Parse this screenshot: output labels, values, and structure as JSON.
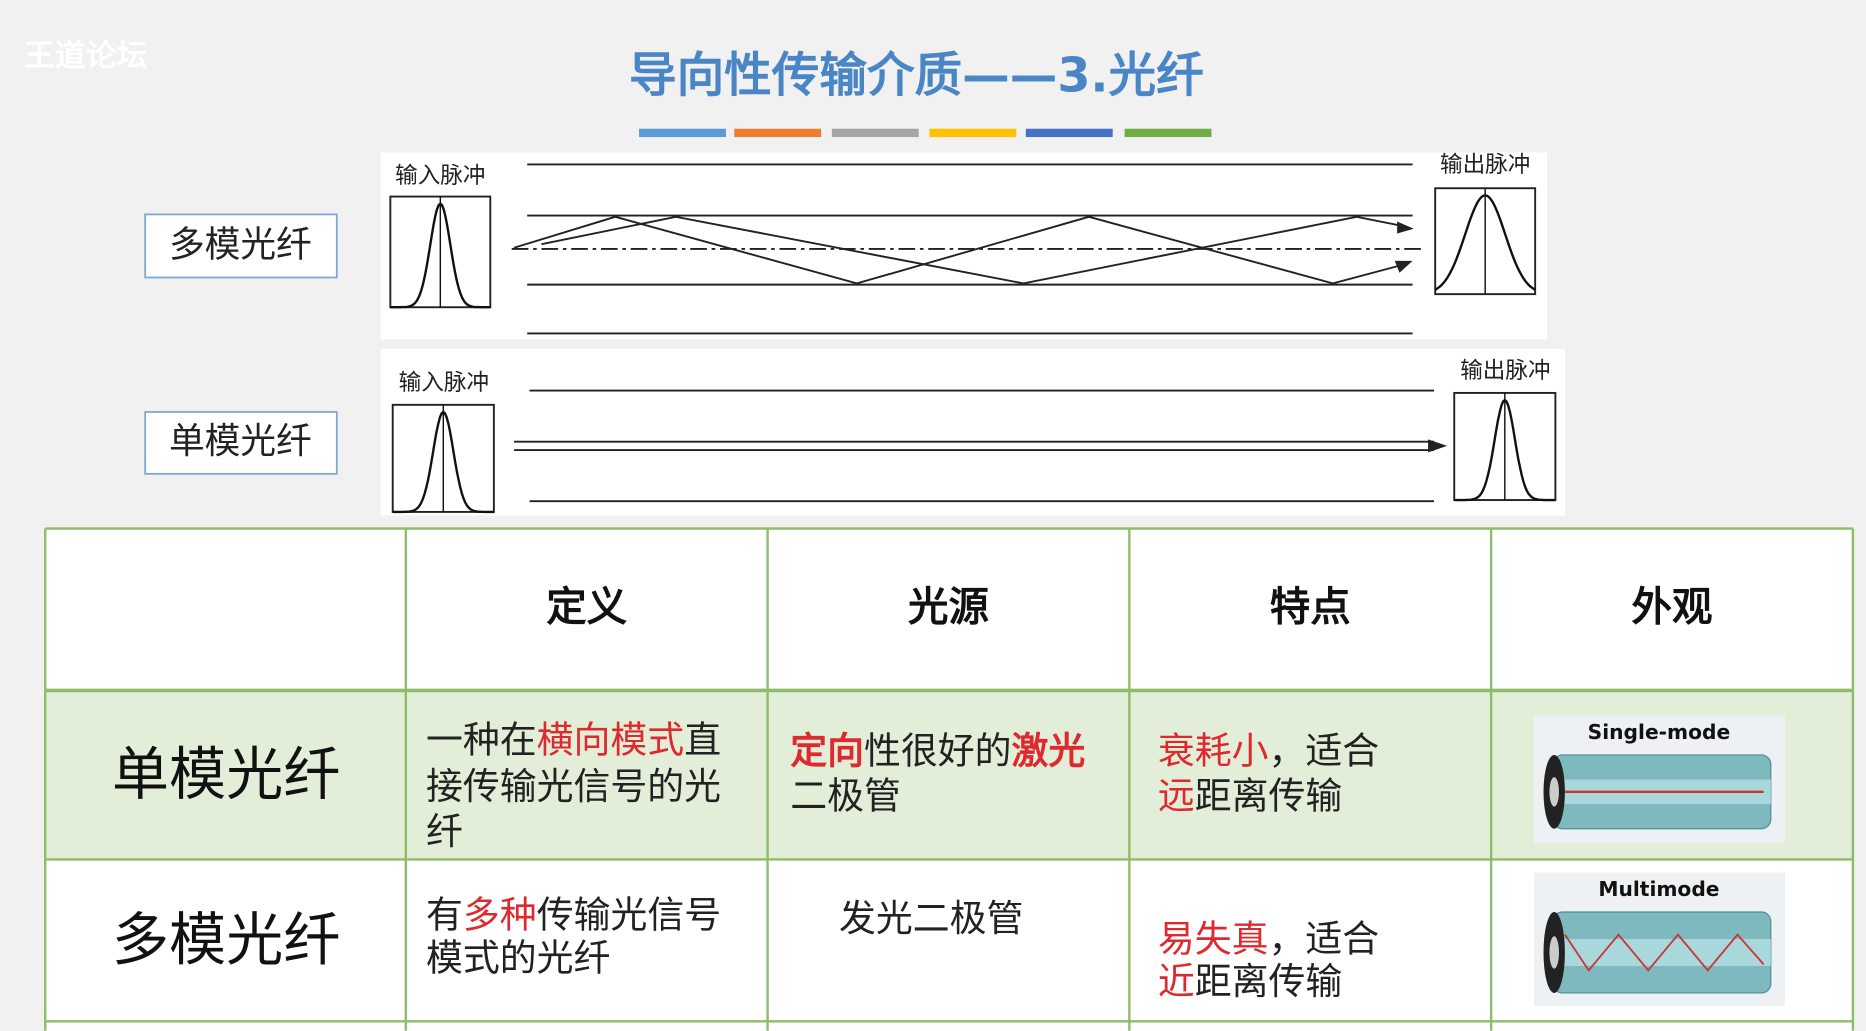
{
  "header": {
    "watermark": "王道论坛",
    "title": "导向性传输介质——3.光纤",
    "accent_colors": [
      "#5b9bd5",
      "#ed7d31",
      "#a5a5a5",
      "#ffc000",
      "#4472c4",
      "#70ad47"
    ]
  },
  "diagrams": [
    {
      "label": "多模光纤",
      "input": "输入脉冲",
      "output": "输出脉冲"
    },
    {
      "label": "单模光纤",
      "input": "输入脉冲",
      "output": "输出脉冲"
    }
  ],
  "table": {
    "highlight_color": "#de2a2f",
    "header": [
      "定义",
      "光源",
      "特点",
      "外观"
    ],
    "rows": [
      {
        "label": "单模光纤",
        "cells": [
          [
            [
              {
                "text": "一种在"
              },
              {
                "text": "横向模式",
                "highlight": true
              },
              {
                "text": "直"
              }
            ],
            [
              {
                "text": "接传输光信号的光"
              }
            ],
            [
              {
                "text": "纤"
              }
            ]
          ],
          [
            [
              {
                "text": "定向",
                "highlight": true,
                "bold": true
              },
              {
                "text": "性很好的"
              },
              {
                "text": "激光",
                "highlight": true,
                "bold": true
              }
            ],
            [
              {
                "text": "二极管"
              }
            ]
          ],
          [
            [
              {
                "text": "衰耗小",
                "highlight": true
              },
              {
                "text": "，适合"
              }
            ],
            [
              {
                "text": "远",
                "highlight": true
              },
              {
                "text": "距离传输"
              }
            ]
          ]
        ],
        "image_label": "Single-mode"
      },
      {
        "label": "多模光纤",
        "cells": [
          [
            [
              {
                "text": "有"
              },
              {
                "text": "多种",
                "highlight": true
              },
              {
                "text": "传输光信号"
              }
            ],
            [
              {
                "text": "模式的光纤"
              }
            ]
          ],
          [
            [
              {
                "text": "发光二极管"
              }
            ]
          ],
          [
            [
              {
                "text": "易失真",
                "highlight": true
              },
              {
                "text": "，适合"
              }
            ],
            [
              {
                "text": "近",
                "highlight": true
              },
              {
                "text": "距离传输"
              }
            ]
          ]
        ],
        "image_label": "Multimode"
      }
    ]
  }
}
